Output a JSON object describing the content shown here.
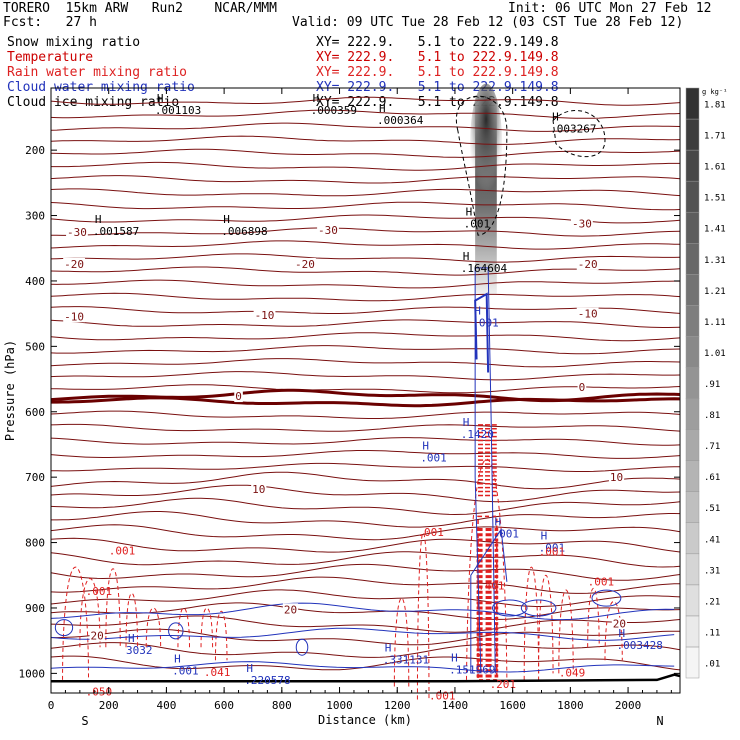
{
  "header": {
    "line1_left": "TORERO  15km ARW   Run2    NCAR/MMM",
    "line1_right": "Init: 06 UTC Mon 27 Feb 12",
    "line2_left": "Fcst:   27 h",
    "line2_right": "Valid: 09 UTC Tue 28 Feb 12 (03 CST Tue 28 Feb 12)"
  },
  "legend": [
    {
      "name": "Snow mixing ratio",
      "xy": "XY= 222.9.   5.1 to 222.9.149.8",
      "color": "#000000",
      "xy_color": "#000000"
    },
    {
      "name": "Temperature",
      "xy": "XY= 222.9.   5.1 to 222.9.149.8",
      "color": "#cc0000",
      "xy_color": "#cc0000"
    },
    {
      "name": "Rain water mixing ratio",
      "xy": "XY= 222.9.   5.1 to 222.9.149.8",
      "color": "#dd2222",
      "xy_color": "#dd2222"
    },
    {
      "name": "Cloud water mixing ratio",
      "xy": "XY= 222.9.   5.1 to 222.9.149.8",
      "color": "#2233bb",
      "xy_color": "#2233bb"
    },
    {
      "name": "Cloud ice mixing ratio",
      "xy": "XY= 222.9.   5.1 to 222.9.149.8",
      "color": "#000000",
      "xy_color": "#000000"
    }
  ],
  "colors": {
    "temperature": "#7a1010",
    "zero_isotherm": "#6a0000",
    "rain": "#e02020",
    "cloud_water": "#2233bb",
    "cloud_ice": "#000000",
    "terrain": "#000000"
  },
  "chart_data": {
    "type": "contour-cross-section",
    "xlabel": "Distance (km)",
    "ylabel": "Pressure (hPa)",
    "xlim": [
      0,
      2180
    ],
    "ylim": [
      1030,
      105
    ],
    "x_ticks": [
      "0",
      "200",
      "400",
      "600",
      "800",
      "1000",
      "1200",
      "1400",
      "1600",
      "1800",
      "2000"
    ],
    "x_tick_values": [
      0,
      200,
      400,
      600,
      800,
      1000,
      1200,
      1400,
      1600,
      1800,
      2000
    ],
    "y_ticks": [
      "200",
      "300",
      "400",
      "500",
      "600",
      "700",
      "800",
      "900",
      "1000"
    ],
    "y_tick_values": [
      200,
      300,
      400,
      500,
      600,
      700,
      800,
      900,
      1000
    ],
    "end_left": "S",
    "end_right": "N",
    "colorbar": {
      "unit": "g kg⁻¹",
      "labels": [
        ".01",
        ".11",
        ".21",
        ".31",
        ".41",
        ".51",
        ".61",
        ".71",
        ".81",
        ".91",
        "1.01",
        "1.11",
        "1.21",
        "1.31",
        "1.41",
        "1.51",
        "1.61",
        "1.71",
        "1.81"
      ]
    },
    "temperature_labels": [
      {
        "text": "-30",
        "x": 90,
        "p": 325
      },
      {
        "text": "-30",
        "x": 960,
        "p": 322
      },
      {
        "text": "-30",
        "x": 1840,
        "p": 312
      },
      {
        "text": "-20",
        "x": 80,
        "p": 374
      },
      {
        "text": "-20",
        "x": 880,
        "p": 374
      },
      {
        "text": "-20",
        "x": 1860,
        "p": 374
      },
      {
        "text": "-10",
        "x": 80,
        "p": 454
      },
      {
        "text": "-10",
        "x": 740,
        "p": 452
      },
      {
        "text": "-10",
        "x": 1860,
        "p": 450
      },
      {
        "text": "0",
        "x": 650,
        "p": 576
      },
      {
        "text": "0",
        "x": 1840,
        "p": 562
      },
      {
        "text": "10",
        "x": 720,
        "p": 718
      },
      {
        "text": "10",
        "x": 1960,
        "p": 700
      },
      {
        "text": "20",
        "x": 160,
        "p": 942
      },
      {
        "text": "20",
        "x": 830,
        "p": 902
      },
      {
        "text": "20",
        "x": 1970,
        "p": 924
      }
    ],
    "high_labels": [
      {
        "text": ".001103",
        "x": 360,
        "p": 145
      },
      {
        "text": ".000359",
        "x": 900,
        "p": 145
      },
      {
        "text": ".000364",
        "x": 1130,
        "p": 160
      },
      {
        "text": ".003267",
        "x": 1730,
        "p": 173
      },
      {
        "text": ".001587",
        "x": 145,
        "p": 330
      },
      {
        "text": ".006898",
        "x": 590,
        "p": 330
      },
      {
        "text": ".001",
        "x": 1430,
        "p": 318
      },
      {
        "text": ".164604",
        "x": 1420,
        "p": 386
      },
      {
        "text": ".001",
        "x": 1460,
        "p": 470
      },
      {
        "text": ".1420",
        "x": 1420,
        "p": 640
      },
      {
        "text": ".001",
        "x": 1530,
        "p": 792
      },
      {
        "text": "3032",
        "x": 260,
        "p": 970
      },
      {
        "text": ".001",
        "x": 420,
        "p": 1002
      },
      {
        "text": ".220578",
        "x": 670,
        "p": 1016
      },
      {
        "text": ".331131",
        "x": 1150,
        "p": 985
      },
      {
        "text": ".151969",
        "x": 1380,
        "p": 1000
      },
      {
        "text": ".003428",
        "x": 1960,
        "p": 963
      },
      {
        "text": ".001",
        "x": 1280,
        "p": 676
      },
      {
        "text": ".001",
        "x": 1690,
        "p": 814
      }
    ],
    "rain_labels": [
      {
        "text": ".001",
        "x": 1270,
        "p": 790
      },
      {
        "text": ".001",
        "x": 1690,
        "p": 820
      },
      {
        "text": ".001",
        "x": 1860,
        "p": 866
      },
      {
        "text": ".001",
        "x": 120,
        "p": 880
      },
      {
        "text": ".001",
        "x": 200,
        "p": 818
      },
      {
        "text": ".041",
        "x": 530,
        "p": 1004
      },
      {
        "text": ".050",
        "x": 120,
        "p": 1034
      },
      {
        "text": ".001",
        "x": 1310,
        "p": 1040
      },
      {
        "text": ".049",
        "x": 1760,
        "p": 1005
      },
      {
        "text": ".401",
        "x": 1480,
        "p": 872
      },
      {
        "text": ".201",
        "x": 1520,
        "p": 1022
      }
    ]
  }
}
